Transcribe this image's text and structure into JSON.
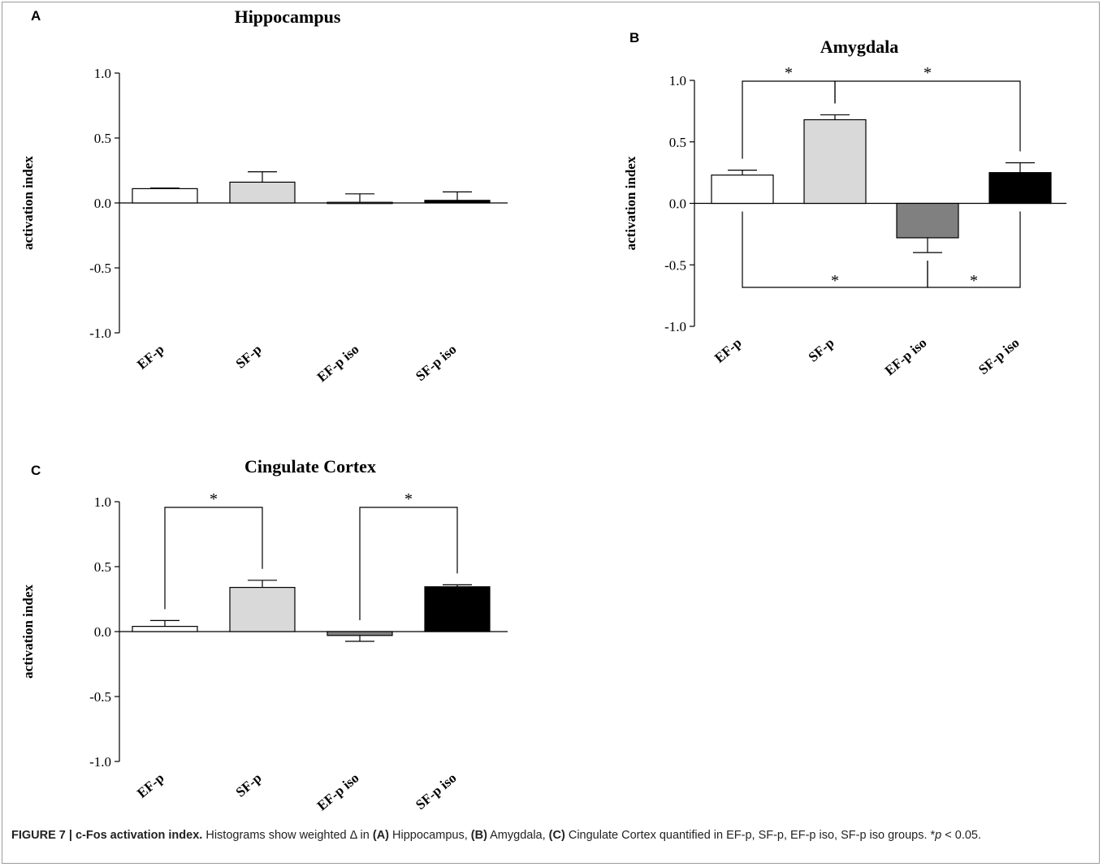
{
  "chart_data": [
    {
      "panel": "A",
      "type": "bar",
      "title": "Hippocampus",
      "ylabel": "activation index",
      "ylim": [
        -1.0,
        1.0
      ],
      "yticks": [
        "1.0",
        "0.5",
        "0.0",
        "-0.5",
        "-1.0"
      ],
      "categories": [
        "EF-p",
        "SF-p",
        "EF-p iso",
        "SF-p iso"
      ],
      "values": [
        0.11,
        0.16,
        0.005,
        0.02
      ],
      "errors": [
        0.005,
        0.08,
        0.065,
        0.065
      ],
      "colors": [
        "#ffffff",
        "#d9d9d9",
        "#808080",
        "#000000"
      ],
      "significance": []
    },
    {
      "panel": "B",
      "type": "bar",
      "title": "Amygdala",
      "ylabel": "activation index",
      "ylim": [
        -1.0,
        1.0
      ],
      "yticks": [
        "1.0",
        "0.5",
        "0.0",
        "-0.5",
        "-1.0"
      ],
      "categories": [
        "EF-p",
        "SF-p",
        "EF-p iso",
        "SF-p iso"
      ],
      "values": [
        0.23,
        0.68,
        -0.28,
        0.25
      ],
      "errors": [
        0.04,
        0.04,
        0.12,
        0.08
      ],
      "colors": [
        "#ffffff",
        "#d9d9d9",
        "#808080",
        "#000000"
      ],
      "significance": [
        {
          "from": 0,
          "to": 1,
          "side": "top",
          "label": "*"
        },
        {
          "from": 1,
          "to": 3,
          "side": "top",
          "label": "*"
        },
        {
          "from": 0,
          "to": 2,
          "side": "bottom",
          "label": "*"
        },
        {
          "from": 2,
          "to": 3,
          "side": "bottom",
          "label": "*"
        }
      ]
    },
    {
      "panel": "C",
      "type": "bar",
      "title": "Cingulate Cortex",
      "ylabel": "activation index",
      "ylim": [
        -1.0,
        1.0
      ],
      "yticks": [
        "1.0",
        "0.5",
        "0.0",
        "-0.5",
        "-1.0"
      ],
      "categories": [
        "EF-p",
        "SF-p",
        "EF-p iso",
        "SF-p iso"
      ],
      "values": [
        0.04,
        0.34,
        -0.03,
        0.345
      ],
      "errors": [
        0.045,
        0.055,
        0.045,
        0.015
      ],
      "colors": [
        "#ffffff",
        "#d9d9d9",
        "#808080",
        "#000000"
      ],
      "significance": [
        {
          "from": 0,
          "to": 1,
          "side": "top",
          "label": "*"
        },
        {
          "from": 2,
          "to": 3,
          "side": "top",
          "label": "*"
        }
      ]
    }
  ],
  "caption": {
    "figure_label": "FIGURE 7 | c-Fos activation index.",
    "text_before_a": " Histograms show weighted Δ in ",
    "a_label": "(A)",
    "a_text": " Hippocampus, ",
    "b_label": "(B)",
    "b_text": " Amygdala, ",
    "c_label": "(C)",
    "text_after_c": " Cingulate Cortex quantified in EF-p, SF-p, EF-p iso, SF-p iso groups. *",
    "p_symbol": "p",
    "p_threshold": " < 0.05."
  }
}
